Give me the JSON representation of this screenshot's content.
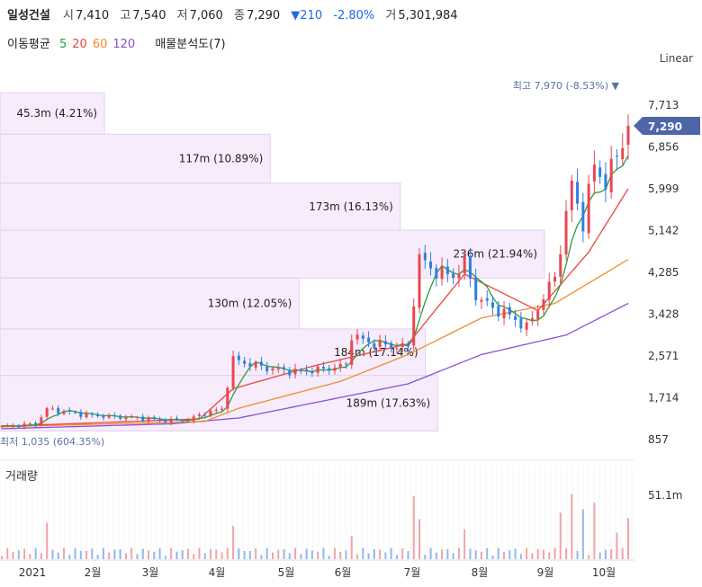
{
  "header": {
    "name": "일성건설",
    "open_label": "시",
    "open": "7,410",
    "high_label": "고",
    "high": "7,540",
    "low_label": "저",
    "low": "7,060",
    "close_label": "종",
    "close": "7,290",
    "change_arrow": "▼",
    "change": "210",
    "change_pct": "-2.80%",
    "volume_label": "거",
    "volume": "5,301,984"
  },
  "ma": {
    "label": "이동평균",
    "items": [
      {
        "period": "5",
        "color": "#27a03a"
      },
      {
        "period": "20",
        "color": "#e8473f"
      },
      {
        "period": "60",
        "color": "#f08c2c"
      },
      {
        "period": "120",
        "color": "#8a4fd8"
      }
    ],
    "vp_label": "매물분석도(7)"
  },
  "scale_label": "Linear",
  "price_axis": {
    "ticks": [
      "7,713",
      "6,856",
      "5,999",
      "5,142",
      "4,285",
      "3,428",
      "2,571",
      "1,714",
      "857"
    ],
    "tick_values": [
      7713,
      6856,
      5999,
      5142,
      4285,
      3428,
      2571,
      1714,
      857
    ],
    "current_price": "7,290",
    "current_value": 7290
  },
  "annotations": {
    "high": "최고 7,970 (-8.53%)",
    "low": "최저 1,035 (604.35%)"
  },
  "volume_panel": {
    "label": "거래량",
    "axis_label": "51.1m"
  },
  "x_axis_labels": [
    "2021",
    "2월",
    "3월",
    "4월",
    "5월",
    "6월",
    "7월",
    "8월",
    "9월",
    "10월"
  ],
  "colors": {
    "up": "#e8474f",
    "down": "#2f7fe0",
    "ma5": "#27a03a",
    "ma20": "#e8473f",
    "ma60": "#f08c2c",
    "ma120": "#8a4fd8",
    "vp_fill": "#f7ecfc",
    "vp_stroke": "#e6cdf2",
    "price_tag": "#4e66a8"
  },
  "chart_data": {
    "type": "candlestick",
    "volume_profile": [
      {
        "label": "45.3m (4.21%)",
        "price_low": 7118,
        "price_high": 7970,
        "pct": 4.21
      },
      {
        "label": "117m (10.89%)",
        "price_low": 6115,
        "price_high": 7118,
        "pct": 10.89
      },
      {
        "label": "173m (16.13%)",
        "price_low": 5150,
        "price_high": 6115,
        "pct": 16.13
      },
      {
        "label": "236m (21.94%)",
        "price_low": 4170,
        "price_high": 5150,
        "pct": 21.94
      },
      {
        "label": "130m (12.05%)",
        "price_low": 3125,
        "price_high": 4170,
        "pct": 12.05
      },
      {
        "label": "184m (17.14%)",
        "price_low": 2170,
        "price_high": 3125,
        "pct": 17.14
      },
      {
        "label": "189m (17.63%)",
        "price_low": 1035,
        "price_high": 2170,
        "pct": 17.63
      }
    ],
    "price_path": [
      [
        0,
        1120
      ],
      [
        3,
        1150
      ],
      [
        6,
        1180
      ],
      [
        8,
        1480
      ],
      [
        11,
        1430
      ],
      [
        15,
        1360
      ],
      [
        19,
        1330
      ],
      [
        24,
        1300
      ],
      [
        29,
        1250
      ],
      [
        33,
        1260
      ],
      [
        36,
        1400
      ],
      [
        39,
        1480
      ],
      [
        41,
        2500
      ],
      [
        44,
        2400
      ],
      [
        48,
        2300
      ],
      [
        52,
        2250
      ],
      [
        57,
        2300
      ],
      [
        61,
        2380
      ],
      [
        62,
        3000
      ],
      [
        65,
        2850
      ],
      [
        69,
        2780
      ],
      [
        72,
        2750
      ],
      [
        73,
        3700
      ],
      [
        74,
        4600
      ],
      [
        76,
        4350
      ],
      [
        80,
        4200
      ],
      [
        82,
        4500
      ],
      [
        84,
        3800
      ],
      [
        87,
        3550
      ],
      [
        90,
        3400
      ],
      [
        93,
        3150
      ],
      [
        95,
        3550
      ],
      [
        98,
        4200
      ],
      [
        99,
        4800
      ],
      [
        101,
        6100
      ],
      [
        103,
        5300
      ],
      [
        105,
        6500
      ],
      [
        107,
        6100
      ],
      [
        109,
        6700
      ],
      [
        111,
        7290
      ]
    ],
    "ma20_path": [
      [
        0,
        1130
      ],
      [
        35,
        1280
      ],
      [
        41,
        1900
      ],
      [
        55,
        2360
      ],
      [
        72,
        2820
      ],
      [
        82,
        4250
      ],
      [
        95,
        3500
      ],
      [
        104,
        4700
      ],
      [
        111,
        6000
      ]
    ],
    "ma60_path": [
      [
        0,
        1120
      ],
      [
        36,
        1230
      ],
      [
        42,
        1500
      ],
      [
        60,
        2050
      ],
      [
        72,
        2600
      ],
      [
        85,
        3350
      ],
      [
        98,
        3650
      ],
      [
        111,
        4550
      ]
    ],
    "ma120_path": [
      [
        0,
        1080
      ],
      [
        30,
        1180
      ],
      [
        42,
        1300
      ],
      [
        72,
        2000
      ],
      [
        85,
        2600
      ],
      [
        100,
        3000
      ],
      [
        111,
        3650
      ]
    ],
    "high": 7970,
    "low": 1035,
    "last_close": 7290
  }
}
